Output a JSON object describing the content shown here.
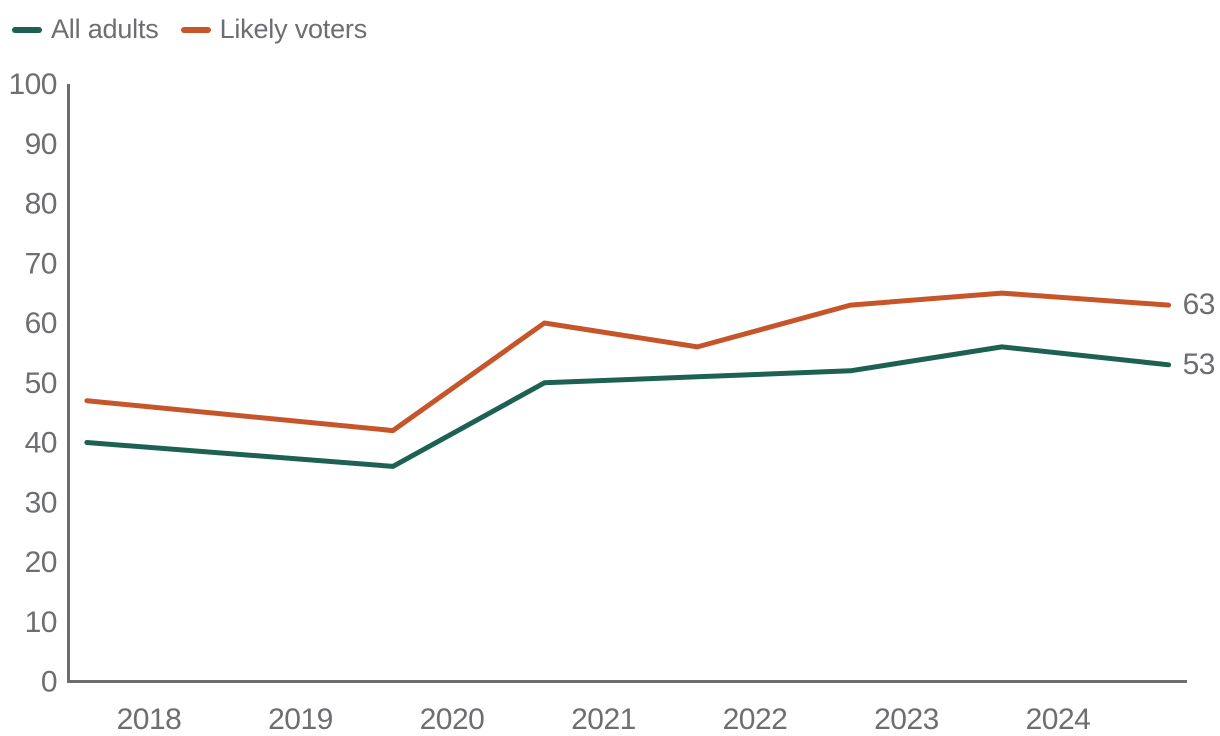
{
  "page": {
    "background": "#ffffff",
    "text_color": "#6D6E71",
    "axis_color": "#6D6E71"
  },
  "legend": {
    "position": "top-left",
    "items": [
      {
        "label": "All adults",
        "color": "#1C6152"
      },
      {
        "label": "Likely voters",
        "color": "#C7552A"
      }
    ]
  },
  "chart_data": {
    "type": "line",
    "x": [
      2017.59,
      2019.61,
      2020.61,
      2021.62,
      2022.63,
      2023.63,
      2024.73
    ],
    "x_tick_labels": [
      "2018",
      "2019",
      "2020",
      "2021",
      "2022",
      "2023",
      "2024"
    ],
    "x_tick_years": [
      2018,
      2019,
      2020,
      2021,
      2022,
      2023,
      2024
    ],
    "ylim": [
      0,
      100
    ],
    "y_ticks": [
      0,
      10,
      20,
      30,
      40,
      50,
      60,
      70,
      80,
      90,
      100
    ],
    "grid": false,
    "legend_position": "top-left",
    "axis_color": "#6D6E71",
    "tick_label_color": "#6D6E71",
    "line_width": 5,
    "series": [
      {
        "name": "All adults",
        "color": "#1C6152",
        "values": [
          40,
          36,
          50,
          51,
          52,
          56,
          53
        ],
        "end_label": "53"
      },
      {
        "name": "Likely voters",
        "color": "#C7552A",
        "values": [
          47,
          42,
          60,
          56,
          63,
          65,
          63
        ],
        "end_label": "63"
      }
    ]
  }
}
